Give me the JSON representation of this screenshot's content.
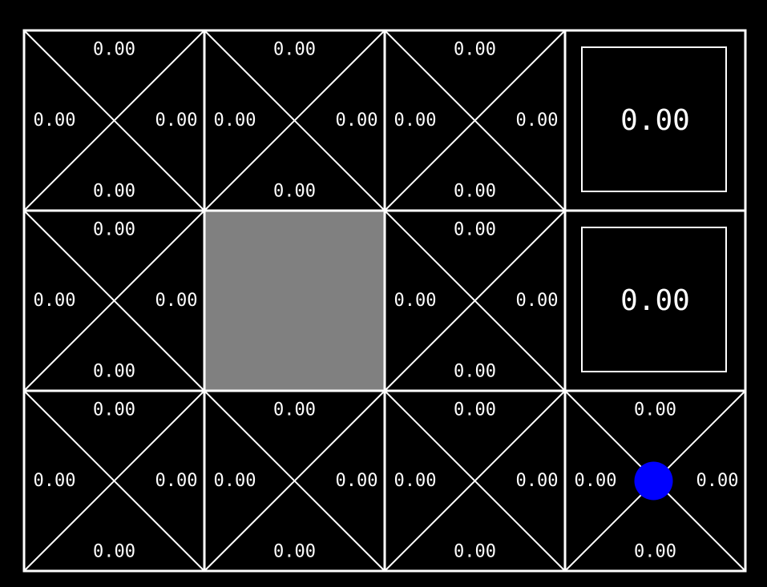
{
  "grid": {
    "rows": 3,
    "cols": 4,
    "colors": {
      "background": "#000000",
      "line": "#ffffff",
      "wall": "#808080",
      "agent": "#0000ff"
    },
    "cells": [
      [
        {
          "kind": "q",
          "up": "0.00",
          "left": "0.00",
          "right": "0.00",
          "down": "0.00"
        },
        {
          "kind": "q",
          "up": "0.00",
          "left": "0.00",
          "right": "0.00",
          "down": "0.00"
        },
        {
          "kind": "q",
          "up": "0.00",
          "left": "0.00",
          "right": "0.00",
          "down": "0.00"
        },
        {
          "kind": "terminal",
          "value": "0.00"
        }
      ],
      [
        {
          "kind": "q",
          "up": "0.00",
          "left": "0.00",
          "right": "0.00",
          "down": "0.00"
        },
        {
          "kind": "wall"
        },
        {
          "kind": "q",
          "up": "0.00",
          "left": "0.00",
          "right": "0.00",
          "down": "0.00"
        },
        {
          "kind": "terminal",
          "value": "0.00"
        }
      ],
      [
        {
          "kind": "q",
          "up": "0.00",
          "left": "0.00",
          "right": "0.00",
          "down": "0.00"
        },
        {
          "kind": "q",
          "up": "0.00",
          "left": "0.00",
          "right": "0.00",
          "down": "0.00"
        },
        {
          "kind": "q",
          "up": "0.00",
          "left": "0.00",
          "right": "0.00",
          "down": "0.00"
        },
        {
          "kind": "q",
          "up": "0.00",
          "left": "0.00",
          "right": "0.00",
          "down": "0.00",
          "agent": true
        }
      ]
    ]
  }
}
